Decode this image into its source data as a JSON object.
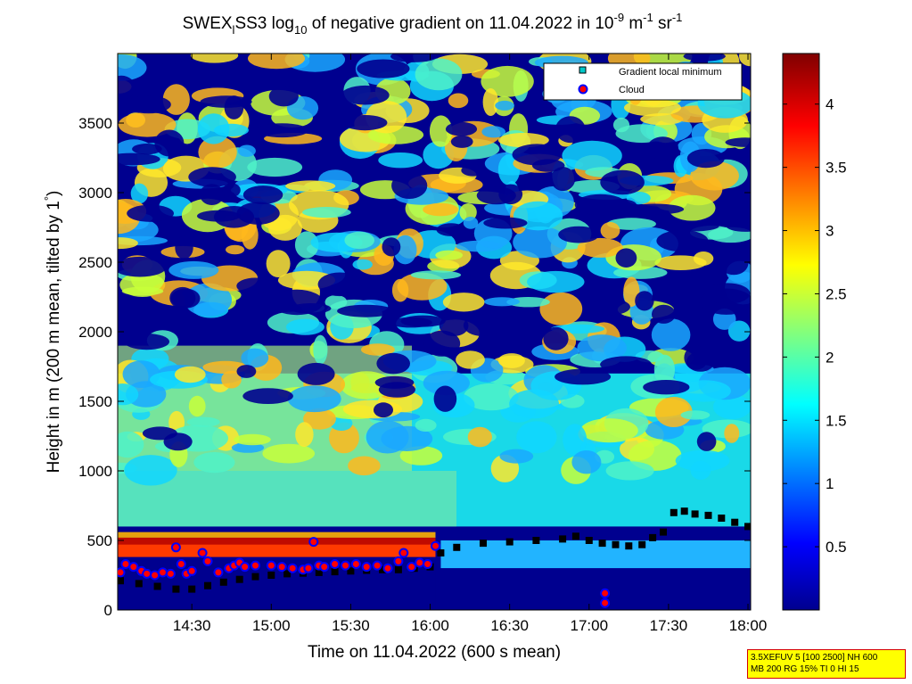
{
  "chart_data": {
    "type": "heatmap",
    "title": {
      "prefix": "SWEX",
      "sub1": "l",
      "mid1": "SS3 log",
      "sub2": "10",
      "mid2": " of negative gradient on 11.04.2022 in 10",
      "sup1": "-9",
      "mid3": " m",
      "sup2": "-1",
      "mid4": " sr",
      "sup3": "-1"
    },
    "xlabel": "Time on 11.04.2022 (600 s mean)",
    "ylabel_parts": {
      "before": "Height in m (200 m mean, tilted by 1",
      "degree": "°",
      "after": ")"
    },
    "x_ticks": [
      "14:30",
      "15:00",
      "15:30",
      "16:00",
      "16:30",
      "17:00",
      "17:30",
      "18:00"
    ],
    "x_tick_minutes": [
      870,
      900,
      930,
      960,
      990,
      1020,
      1050,
      1080
    ],
    "xlim_minutes": [
      842,
      1081
    ],
    "y_ticks": [
      0,
      500,
      1000,
      1500,
      2000,
      2500,
      3000,
      3500
    ],
    "ylim": [
      0,
      4000
    ],
    "colorbar": {
      "ticks": [
        "0.5",
        "1",
        "1.5",
        "2",
        "2.5",
        "3",
        "3.5",
        "4"
      ],
      "tick_values": [
        0.5,
        1,
        1.5,
        2,
        2.5,
        3,
        3.5,
        4
      ],
      "range": [
        0,
        4.4
      ],
      "colormap": "jet"
    },
    "legend": {
      "placement": "top-right",
      "entries": [
        {
          "label": "Gradient local minimum",
          "marker": "square",
          "color": "#00c8c8"
        },
        {
          "label": "Cloud",
          "marker": "circle",
          "color": "#ff0000",
          "edge": "#0000ff"
        }
      ]
    },
    "series": [
      {
        "name": "Gradient local minimum",
        "x_minutes": [
          843,
          850,
          857,
          864,
          870,
          876,
          882,
          888,
          894,
          900,
          906,
          912,
          918,
          924,
          930,
          936,
          942,
          948,
          954,
          960,
          964,
          970,
          980,
          990,
          1000,
          1010,
          1015,
          1020,
          1025,
          1030,
          1035,
          1040,
          1044,
          1048,
          1052,
          1056,
          1060,
          1065,
          1070,
          1075,
          1080
        ],
        "y": [
          210,
          190,
          170,
          150,
          150,
          175,
          200,
          220,
          240,
          250,
          260,
          265,
          270,
          275,
          280,
          285,
          290,
          290,
          300,
          310,
          410,
          450,
          480,
          490,
          500,
          510,
          530,
          500,
          480,
          470,
          460,
          470,
          520,
          560,
          700,
          710,
          690,
          680,
          660,
          630,
          600
        ]
      },
      {
        "name": "Cloud",
        "x_minutes": [
          843,
          845,
          848,
          851,
          853,
          856,
          859,
          862,
          864,
          866,
          868,
          870,
          874,
          876,
          880,
          884,
          886,
          888,
          890,
          894,
          900,
          904,
          908,
          912,
          914,
          916,
          918,
          920,
          924,
          928,
          932,
          936,
          940,
          944,
          948,
          950,
          953,
          956,
          959,
          962,
          1026,
          1026
        ],
        "y": [
          270,
          330,
          310,
          280,
          260,
          250,
          270,
          260,
          450,
          330,
          260,
          280,
          410,
          350,
          270,
          300,
          320,
          340,
          310,
          320,
          320,
          310,
          300,
          290,
          300,
          490,
          320,
          310,
          330,
          320,
          330,
          310,
          320,
          300,
          350,
          410,
          310,
          340,
          330,
          460,
          120,
          50
        ]
      }
    ]
  },
  "info_box": {
    "line1": "3.5XEFUV 5 [100 2500] NH 600",
    "line2": "MB 200 RG 15% TI 0 HI 15"
  }
}
